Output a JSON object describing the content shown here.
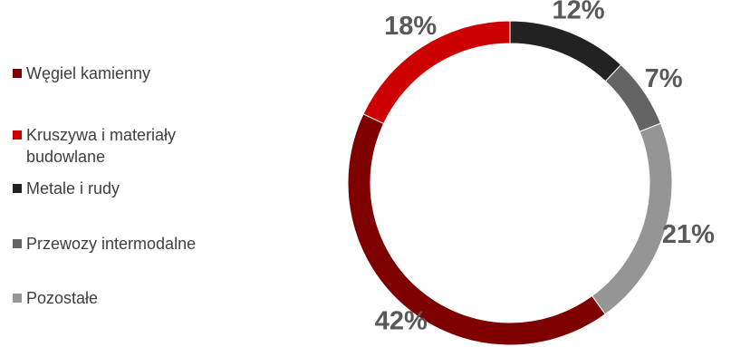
{
  "chart_data": {
    "type": "pie",
    "categories": [
      "Węgiel kamienny",
      "Kruszywa i materiały budowlane",
      "Metale i rudy",
      "Przewozy intermodalne",
      "Pozostałe"
    ],
    "values": [
      42,
      18,
      12,
      7,
      21
    ],
    "value_labels": [
      "42%",
      "18%",
      "12%",
      "7%",
      "21%"
    ],
    "colors": [
      "#7f0000",
      "#cc0000",
      "#222222",
      "#646464",
      "#959595"
    ],
    "style": "donut",
    "legend_position": "left"
  }
}
